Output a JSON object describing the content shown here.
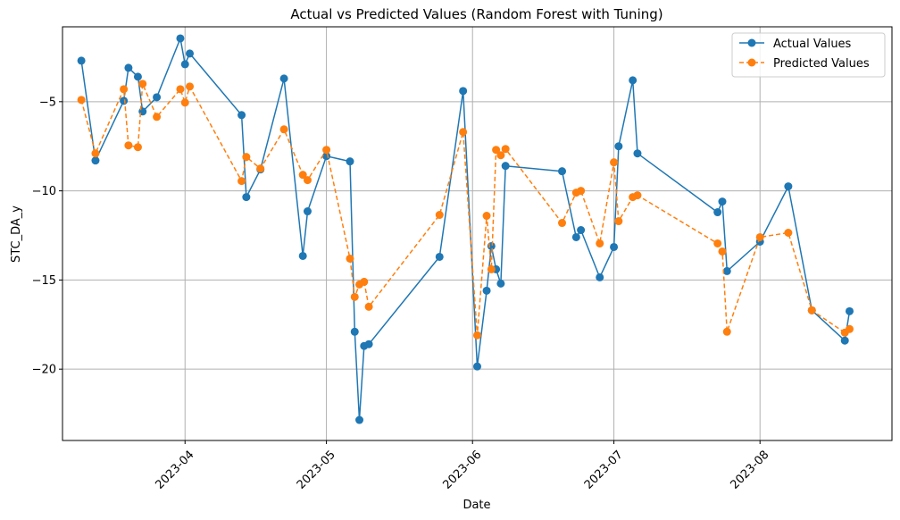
{
  "chart_data": {
    "type": "line",
    "title": "Actual vs Predicted Values (Random Forest with Tuning)",
    "xlabel": "Date",
    "ylabel": "STC_DA_y",
    "x_axis_type": "date",
    "xlim": [
      "2023-03-06",
      "2023-08-29"
    ],
    "ylim": [
      -24.0,
      -0.8
    ],
    "x_ticks": [
      "2023-04-01",
      "2023-05-01",
      "2023-06-01",
      "2023-07-01",
      "2023-08-01"
    ],
    "x_tick_labels": [
      "2023-04",
      "2023-05",
      "2023-06",
      "2023-07",
      "2023-08"
    ],
    "y_ticks": [
      -20,
      -15,
      -10,
      -5
    ],
    "y_tick_labels": [
      "−20",
      "−15",
      "−10",
      "−5"
    ],
    "grid": true,
    "legend_position": "top-right",
    "x": [
      "2023-03-10",
      "2023-03-13",
      "2023-03-19",
      "2023-03-20",
      "2023-03-22",
      "2023-03-23",
      "2023-03-26",
      "2023-03-31",
      "2023-04-01",
      "2023-04-02",
      "2023-04-13",
      "2023-04-14",
      "2023-04-17",
      "2023-04-22",
      "2023-04-26",
      "2023-04-27",
      "2023-05-01",
      "2023-05-06",
      "2023-05-07",
      "2023-05-08",
      "2023-05-09",
      "2023-05-10",
      "2023-05-25",
      "2023-05-30",
      "2023-06-02",
      "2023-06-04",
      "2023-06-05",
      "2023-06-06",
      "2023-06-07",
      "2023-06-08",
      "2023-06-20",
      "2023-06-23",
      "2023-06-24",
      "2023-06-28",
      "2023-07-01",
      "2023-07-02",
      "2023-07-05",
      "2023-07-06",
      "2023-07-23",
      "2023-07-24",
      "2023-07-25",
      "2023-08-01",
      "2023-08-07",
      "2023-08-12",
      "2023-08-19",
      "2023-08-20"
    ],
    "series": [
      {
        "name": "Actual Values",
        "color": "#1f77b4",
        "line_style": "solid",
        "values": [
          -2.7,
          -8.3,
          -4.95,
          -3.1,
          -3.6,
          -5.55,
          -4.75,
          -1.45,
          -2.9,
          -2.3,
          -5.75,
          -10.35,
          -8.8,
          -3.7,
          -13.65,
          -11.15,
          -8.05,
          -8.35,
          -17.9,
          -22.85,
          -18.7,
          -18.6,
          -13.7,
          -4.4,
          -19.85,
          -15.6,
          -13.1,
          -14.4,
          -15.2,
          -8.6,
          -8.9,
          -12.6,
          -12.2,
          -14.85,
          -13.15,
          -7.5,
          -3.8,
          -7.9,
          -11.2,
          -10.6,
          -14.5,
          -12.85,
          -9.75,
          -16.7,
          -18.4,
          -16.75
        ]
      },
      {
        "name": "Predicted Values",
        "color": "#ff7f0e",
        "line_style": "dashed",
        "values": [
          -4.9,
          -7.9,
          -4.3,
          -7.45,
          -7.55,
          -4.0,
          -5.85,
          -4.3,
          -5.05,
          -4.15,
          -9.45,
          -8.1,
          -8.75,
          -6.55,
          -9.1,
          -9.4,
          -7.7,
          -13.8,
          -15.95,
          -15.25,
          -15.1,
          -16.5,
          -11.35,
          -6.7,
          -18.1,
          -11.4,
          -14.4,
          -7.7,
          -8.0,
          -7.65,
          -11.8,
          -10.1,
          -10.0,
          -12.95,
          -8.4,
          -11.7,
          -10.35,
          -10.25,
          -12.95,
          -13.4,
          -17.9,
          -12.6,
          -12.35,
          -16.7,
          -17.95,
          -17.75
        ]
      }
    ]
  }
}
